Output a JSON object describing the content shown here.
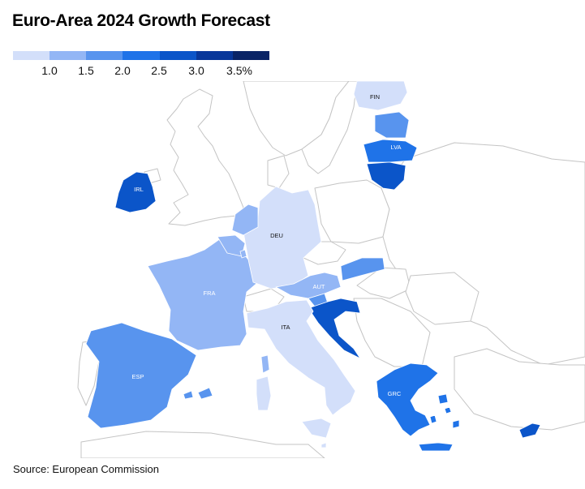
{
  "title": "Euro-Area 2024 Growth Forecast",
  "source": "Source: European Commission",
  "legend": {
    "colors": [
      "#d3dffa",
      "#93b6f5",
      "#5894ee",
      "#1f73e8",
      "#0b55c9",
      "#08379a",
      "#0a2466"
    ],
    "ticks": [
      "1.0",
      "1.5",
      "2.0",
      "2.5",
      "3.0",
      "3.5%"
    ]
  },
  "colors": {
    "base_land": "#ffffff",
    "border": "#c4c4c4",
    "water": "#ffffff",
    "label_dark": "#111111",
    "label_light": "#ffffff"
  },
  "countries": {
    "irl": {
      "label": "IRL"
    },
    "fra": {
      "label": "FRA"
    },
    "esp": {
      "label": "ESP"
    },
    "deu": {
      "label": "DEU"
    },
    "aut": {
      "label": "AUT"
    },
    "ita": {
      "label": "ITA"
    },
    "grc": {
      "label": "GRC"
    },
    "lva": {
      "label": "LVA"
    },
    "fin": {
      "label": "FIN"
    }
  }
}
